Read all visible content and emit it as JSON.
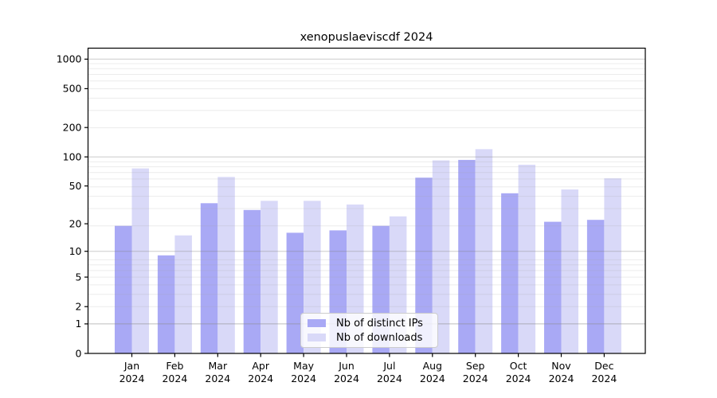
{
  "chart_data": {
    "type": "bar",
    "title": "xenopuslaeviscdf 2024",
    "categories": [
      "Jan",
      "Feb",
      "Mar",
      "Apr",
      "May",
      "Jun",
      "Jul",
      "Aug",
      "Sep",
      "Oct",
      "Nov",
      "Dec"
    ],
    "x_year_label": "2024",
    "series": [
      {
        "name": "Nb of distinct IPs",
        "color": "#a9a9f5",
        "values": [
          19,
          9,
          33,
          28,
          16,
          17,
          19,
          61,
          93,
          42,
          21,
          22
        ]
      },
      {
        "name": "Nb of downloads",
        "color": "#d9d9f8",
        "values": [
          76,
          15,
          62,
          35,
          35,
          32,
          24,
          92,
          120,
          83,
          46,
          60
        ]
      }
    ],
    "y_axis": {
      "scale": "log1p",
      "ticks": [
        0,
        1,
        2,
        5,
        10,
        20,
        50,
        100,
        200,
        500,
        1000
      ],
      "ylim": [
        0,
        1300
      ]
    },
    "legend": {
      "position": "lower-center"
    },
    "grid": {
      "major": true,
      "minor": true
    },
    "colors": {
      "axis": "#000000",
      "major_grid": "#808080",
      "minor_grid": "#aaaaaa",
      "text": "#000000",
      "background": "#ffffff"
    }
  }
}
